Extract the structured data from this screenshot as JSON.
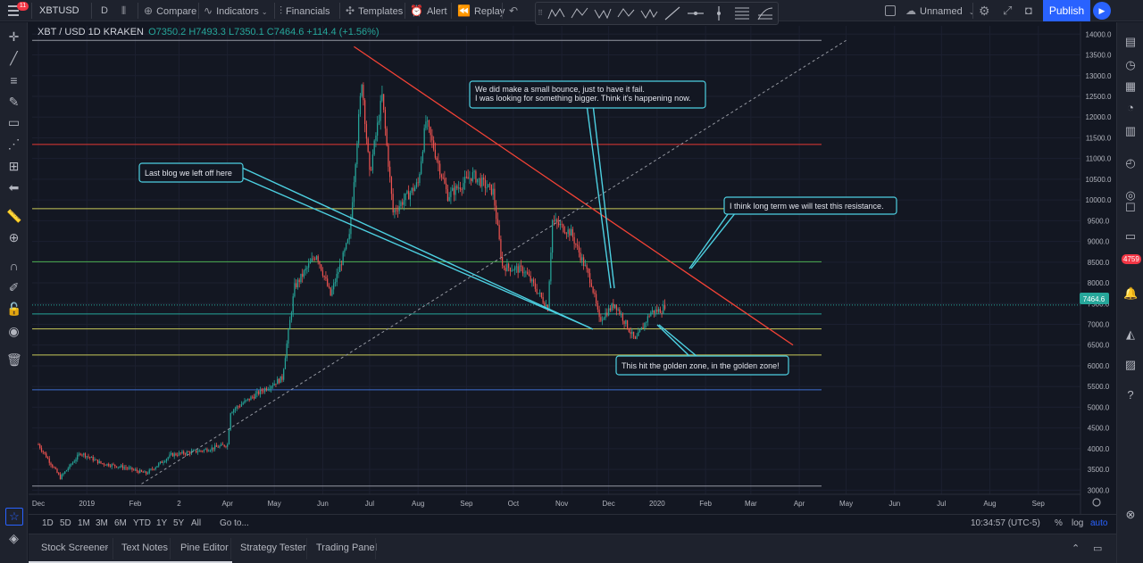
{
  "header": {
    "symbol": "XBTUSD",
    "notification_count": "11",
    "interval": "D",
    "compare_label": "Compare",
    "indicators_label": "Indicators",
    "financials_label": "Financials",
    "templates_label": "Templates",
    "alert_label": "Alert",
    "replay_label": "Replay",
    "layout_name": "Unnamed",
    "publish_label": "Publish"
  },
  "drawing_toolbar": {
    "patterns": [
      "XABCD",
      "ABCD",
      "WXYZ",
      "ABC",
      "WXY"
    ]
  },
  "legend": {
    "title": "XBT / USD  1D  KRAKEN",
    "ohlc": "O7350.2  H7493.3  L7350.1  C7464.6  +114.4 (+1.56%)"
  },
  "price_tag": "7464.6",
  "right_badge": "4759",
  "annotations": [
    "We did make a small bounce, just to have it fail.\n I was looking for something bigger. Think it's happening now.",
    "Last blog we left off here",
    "I think long term we will test this resistance.",
    "This hit the golden zone, in the golden zone!"
  ],
  "range_buttons": [
    "1D",
    "5D",
    "1M",
    "3M",
    "6M",
    "YTD",
    "1Y",
    "5Y",
    "All"
  ],
  "goto_label": "Go to...",
  "clock": "10:34:57 (UTC-5)",
  "scale_options": {
    "percent": "%",
    "log": "log",
    "auto": "auto"
  },
  "bottom_tabs": [
    "Stock Screener",
    "Text Notes",
    "Pine Editor",
    "Strategy Tester",
    "Trading Panel"
  ],
  "colors": {
    "background": "#131722",
    "up": "#26a69a",
    "down": "#ef5350",
    "resistance": "#f44336",
    "trendline": "#4dd0e1",
    "accent": "#2962ff"
  },
  "chart_data": {
    "type": "candlestick",
    "symbol": "XBT / USD",
    "exchange": "KRAKEN",
    "interval": "1D",
    "ylim": [
      2900,
      14200
    ],
    "y_ticks": [
      3000,
      3500,
      4000,
      4500,
      5000,
      5500,
      6000,
      6500,
      7000,
      7500,
      8000,
      8500,
      9000,
      9500,
      10000,
      10500,
      11000,
      11500,
      12000,
      12500,
      13000,
      13500,
      14000
    ],
    "x_tick_labels": [
      "Dec",
      "2019",
      "Feb",
      "2",
      "Apr",
      "May",
      "Jun",
      "Jul",
      "Aug",
      "Sep",
      "Oct",
      "Nov",
      "Dec",
      "2020",
      "Feb",
      "Mar",
      "Apr",
      "May",
      "Jun",
      "Jul",
      "Aug",
      "Sep"
    ],
    "x_range": [
      "2018-12",
      "2020-09"
    ],
    "close_path": [
      [
        "2018-12-01",
        4100
      ],
      [
        "2018-12-15",
        3300
      ],
      [
        "2018-12-28",
        3900
      ],
      [
        "2019-01-10",
        3650
      ],
      [
        "2019-01-25",
        3550
      ],
      [
        "2019-02-08",
        3400
      ],
      [
        "2019-02-24",
        3850
      ],
      [
        "2019-03-15",
        3950
      ],
      [
        "2019-04-01",
        4100
      ],
      [
        "2019-04-03",
        4900
      ],
      [
        "2019-04-23",
        5400
      ],
      [
        "2019-05-06",
        5700
      ],
      [
        "2019-05-14",
        7900
      ],
      [
        "2019-05-28",
        8700
      ],
      [
        "2019-06-06",
        7700
      ],
      [
        "2019-06-18",
        9100
      ],
      [
        "2019-06-26",
        12900
      ],
      [
        "2019-07-01",
        10600
      ],
      [
        "2019-07-09",
        12500
      ],
      [
        "2019-07-16",
        9700
      ],
      [
        "2019-08-01",
        10400
      ],
      [
        "2019-08-06",
        11900
      ],
      [
        "2019-08-20",
        10100
      ],
      [
        "2019-09-05",
        10600
      ],
      [
        "2019-09-18",
        10200
      ],
      [
        "2019-09-24",
        8400
      ],
      [
        "2019-10-08",
        8300
      ],
      [
        "2019-10-23",
        7400
      ],
      [
        "2019-10-26",
        9500
      ],
      [
        "2019-11-07",
        9200
      ],
      [
        "2019-11-20",
        8000
      ],
      [
        "2019-11-25",
        7100
      ],
      [
        "2019-12-05",
        7500
      ],
      [
        "2019-12-18",
        6600
      ],
      [
        "2019-12-28",
        7300
      ],
      [
        "2020-01-04",
        7350
      ],
      [
        "2020-01-06",
        7464.6
      ]
    ],
    "horizontal_levels": [
      {
        "price": 13850,
        "color": "gray"
      },
      {
        "price": 11340,
        "color": "red"
      },
      {
        "price": 9790,
        "color": "yellow"
      },
      {
        "price": 8510,
        "color": "green"
      },
      {
        "price": 7250,
        "color": "teal"
      },
      {
        "price": 6890,
        "color": "yellow"
      },
      {
        "price": 6260,
        "color": "yellow"
      },
      {
        "price": 5420,
        "color": "blue"
      },
      {
        "price": 3100,
        "color": "gray"
      }
    ],
    "trend_lines": [
      {
        "kind": "resistance",
        "from": [
          "2019-06-21",
          13700
        ],
        "to": [
          "2020-03-28",
          6500
        ]
      },
      {
        "kind": "support",
        "from": [
          "2019-02-05",
          3150
        ],
        "to": [
          "2020-05-01",
          13850
        ],
        "style": "dashed"
      }
    ]
  }
}
